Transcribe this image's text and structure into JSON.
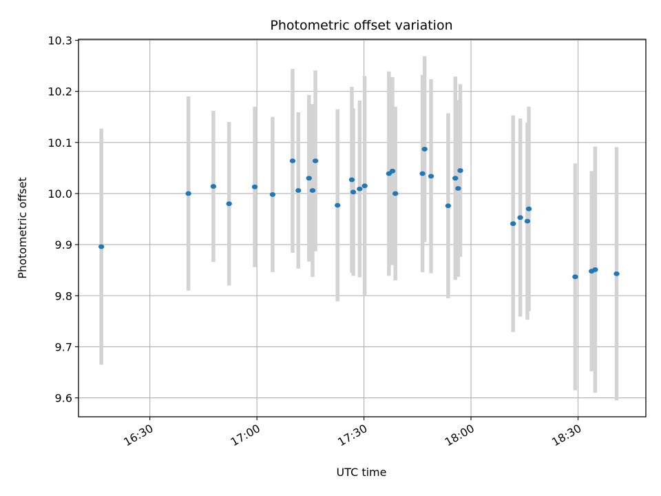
{
  "chart_data": {
    "type": "scatter",
    "title": "Photometric offset variation",
    "xlabel": "UTC time",
    "ylabel": "Photometric offset",
    "x_unit": "UTC HH:MM",
    "xlim": [
      "16:10",
      "18:49"
    ],
    "ylim": [
      9.563,
      10.302
    ],
    "x_ticks": [
      "16:30",
      "17:00",
      "17:30",
      "18:00",
      "18:30"
    ],
    "y_ticks": [
      "9.6",
      "9.7",
      "9.8",
      "9.9",
      "10.0",
      "10.1",
      "10.2",
      "10.3"
    ],
    "grid": true,
    "marker_color": "#1f77b4",
    "errorbar_color": "#d3d3d3",
    "series": [
      {
        "points": [
          {
            "x": "16:16:24",
            "y": 9.896,
            "yerr": 0.231
          },
          {
            "x": "16:40:48",
            "y": 10.0,
            "yerr": 0.19
          },
          {
            "x": "16:47:48",
            "y": 10.014,
            "yerr": 0.148
          },
          {
            "x": "16:52:12",
            "y": 9.98,
            "yerr": 0.16
          },
          {
            "x": "16:59:24",
            "y": 10.013,
            "yerr": 0.157
          },
          {
            "x": "17:04:24",
            "y": 9.998,
            "yerr": 0.152
          },
          {
            "x": "17:10:00",
            "y": 10.064,
            "yerr": 0.18
          },
          {
            "x": "17:11:36",
            "y": 10.006,
            "yerr": 0.153
          },
          {
            "x": "17:14:36",
            "y": 10.03,
            "yerr": 0.163
          },
          {
            "x": "17:15:36",
            "y": 10.006,
            "yerr": 0.169
          },
          {
            "x": "17:16:24",
            "y": 10.064,
            "yerr": 0.177
          },
          {
            "x": "17:22:36",
            "y": 9.977,
            "yerr": 0.188
          },
          {
            "x": "17:26:36",
            "y": 10.027,
            "yerr": 0.182
          },
          {
            "x": "17:27:00",
            "y": 10.003,
            "yerr": 0.164
          },
          {
            "x": "17:28:48",
            "y": 10.009,
            "yerr": 0.173
          },
          {
            "x": "17:30:12",
            "y": 10.015,
            "yerr": 0.215
          },
          {
            "x": "17:37:00",
            "y": 10.039,
            "yerr": 0.2
          },
          {
            "x": "17:38:00",
            "y": 10.044,
            "yerr": 0.184
          },
          {
            "x": "17:38:48",
            "y": 10.0,
            "yerr": 0.17
          },
          {
            "x": "17:46:24",
            "y": 10.039,
            "yerr": 0.193
          },
          {
            "x": "17:47:00",
            "y": 10.087,
            "yerr": 0.182
          },
          {
            "x": "17:48:48",
            "y": 10.034,
            "yerr": 0.19
          },
          {
            "x": "17:53:36",
            "y": 9.976,
            "yerr": 0.181
          },
          {
            "x": "17:55:36",
            "y": 10.03,
            "yerr": 0.199
          },
          {
            "x": "17:56:24",
            "y": 10.01,
            "yerr": 0.173
          },
          {
            "x": "17:57:00",
            "y": 10.045,
            "yerr": 0.169
          },
          {
            "x": "18:11:48",
            "y": 9.941,
            "yerr": 0.212
          },
          {
            "x": "18:13:48",
            "y": 9.953,
            "yerr": 0.194
          },
          {
            "x": "18:15:48",
            "y": 9.946,
            "yerr": 0.193
          },
          {
            "x": "18:16:12",
            "y": 9.97,
            "yerr": 0.2
          },
          {
            "x": "18:29:12",
            "y": 9.837,
            "yerr": 0.222
          },
          {
            "x": "18:33:48",
            "y": 9.848,
            "yerr": 0.196
          },
          {
            "x": "18:34:48",
            "y": 9.851,
            "yerr": 0.241
          },
          {
            "x": "18:40:48",
            "y": 9.843,
            "yerr": 0.248
          }
        ]
      }
    ]
  }
}
